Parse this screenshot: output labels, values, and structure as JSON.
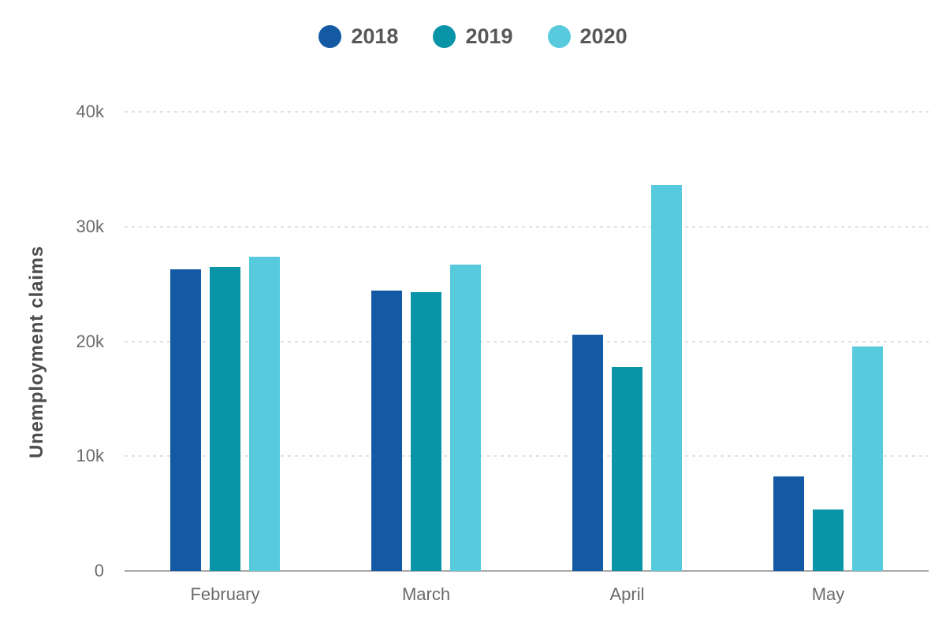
{
  "chart_data": {
    "type": "bar",
    "title": "",
    "ylabel": "Unemployment claims",
    "xlabel": "",
    "categories": [
      "February",
      "March",
      "April",
      "May"
    ],
    "series": [
      {
        "name": "2018",
        "color": "#1359A4",
        "values": [
          26300,
          24400,
          20600,
          8200
        ]
      },
      {
        "name": "2019",
        "color": "#0A94A8",
        "values": [
          26450,
          24300,
          17800,
          5350
        ]
      },
      {
        "name": "2020",
        "color": "#58CADD",
        "values": [
          27400,
          26700,
          33600,
          19550
        ]
      }
    ],
    "ylim": [
      0,
      40000
    ],
    "yticks": [
      {
        "label": "0",
        "value": 0
      },
      {
        "label": "10k",
        "value": 10000
      },
      {
        "label": "20k",
        "value": 20000
      },
      {
        "label": "30k",
        "value": 30000
      },
      {
        "label": "40k",
        "value": 40000
      }
    ],
    "legend_position": "top-center",
    "grid": "horizontal-dashed",
    "colors": {
      "legend_text": "#58585b",
      "axis_text": "#6b6b6b",
      "y_title_text": "#4d4d4d",
      "gridline": "#e1e1e1",
      "axis_line": "#a8a8a8",
      "background": "#ffffff"
    }
  }
}
